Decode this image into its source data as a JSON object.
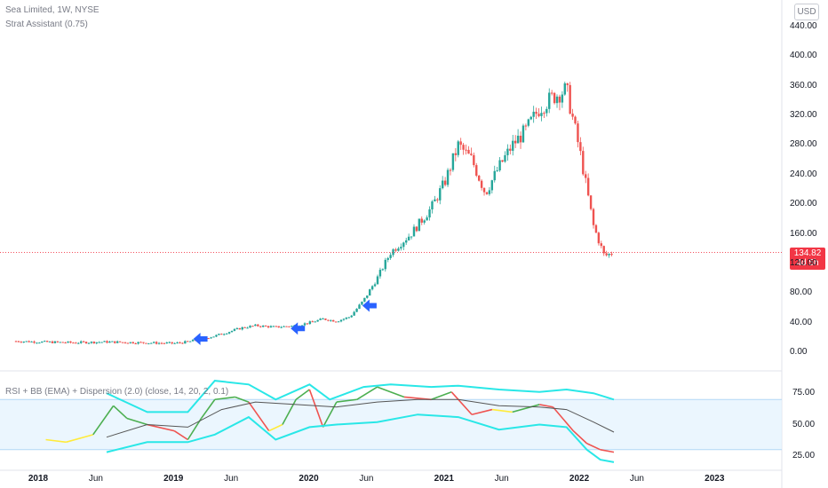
{
  "header": {
    "symbol_line": "Sea Limited, 1W, NYSE",
    "indicator_line": "Strat Assistant (0.75)",
    "currency_button": "USD"
  },
  "rsi_pane": {
    "legend": "RSI + BB (EMA) + Dispersion (2.0) (close, 14, 20, 2, 0.1)"
  },
  "last_price": {
    "value": "134.82",
    "countdown": "4d 5h"
  },
  "colors": {
    "bull": "#26a69a",
    "bear": "#ef5350",
    "price_line": "#f23645",
    "signal_arrow": "#2962ff",
    "bb_band": "#29e7e7",
    "basis": "#555555",
    "rsi_green": "#4caf50",
    "rsi_yellow": "#ffeb3b",
    "rsi_red": "#ef5350",
    "rsi_zone": "#e3f2fd"
  },
  "chart_data": [
    {
      "type": "candlestick",
      "title": "Sea Limited, 1W, NYSE",
      "y_ticks": [
        "440.00",
        "400.00",
        "360.00",
        "320.00",
        "280.00",
        "240.00",
        "200.00",
        "160.00",
        "120.00",
        "80.00",
        "40.00",
        "0.00"
      ],
      "ylim": [
        0,
        440
      ],
      "x_ticks": [
        "2018",
        "Jun",
        "2019",
        "Jun",
        "2020",
        "Jun",
        "2021",
        "Jun",
        "2022",
        "Jun",
        "2023"
      ],
      "close_path": [
        {
          "t": 2017.83,
          "v": 15
        },
        {
          "t": 2018.0,
          "v": 14
        },
        {
          "t": 2018.25,
          "v": 13
        },
        {
          "t": 2018.5,
          "v": 14
        },
        {
          "t": 2018.75,
          "v": 13
        },
        {
          "t": 2019.0,
          "v": 12
        },
        {
          "t": 2019.1,
          "v": 14
        },
        {
          "t": 2019.3,
          "v": 22
        },
        {
          "t": 2019.5,
          "v": 33
        },
        {
          "t": 2019.6,
          "v": 36
        },
        {
          "t": 2019.75,
          "v": 34
        },
        {
          "t": 2019.9,
          "v": 36
        },
        {
          "t": 2020.0,
          "v": 40
        },
        {
          "t": 2020.1,
          "v": 45
        },
        {
          "t": 2020.2,
          "v": 42
        },
        {
          "t": 2020.3,
          "v": 48
        },
        {
          "t": 2020.4,
          "v": 70
        },
        {
          "t": 2020.5,
          "v": 100
        },
        {
          "t": 2020.6,
          "v": 135
        },
        {
          "t": 2020.75,
          "v": 160
        },
        {
          "t": 2020.9,
          "v": 195
        },
        {
          "t": 2021.0,
          "v": 230
        },
        {
          "t": 2021.1,
          "v": 280
        },
        {
          "t": 2021.2,
          "v": 260
        },
        {
          "t": 2021.3,
          "v": 215
        },
        {
          "t": 2021.4,
          "v": 250
        },
        {
          "t": 2021.5,
          "v": 280
        },
        {
          "t": 2021.6,
          "v": 300
        },
        {
          "t": 2021.7,
          "v": 330
        },
        {
          "t": 2021.8,
          "v": 345
        },
        {
          "t": 2021.9,
          "v": 355
        },
        {
          "t": 2022.0,
          "v": 270
        },
        {
          "t": 2022.1,
          "v": 170
        },
        {
          "t": 2022.18,
          "v": 130
        },
        {
          "t": 2022.25,
          "v": 134.82
        }
      ],
      "last_price": 134.82,
      "signal_arrows": [
        {
          "t": 2019.2,
          "v": 18
        },
        {
          "t": 2019.92,
          "v": 32
        },
        {
          "t": 2020.45,
          "v": 63
        }
      ]
    },
    {
      "type": "line",
      "title": "RSI + BB (EMA) + Dispersion (2.0) (close, 14, 20, 2, 0.1)",
      "y_ticks": [
        "75.00",
        "50.00",
        "25.00"
      ],
      "ylim": [
        15,
        90
      ],
      "zone": [
        30,
        70
      ],
      "series": [
        {
          "role": "rsi",
          "points": [
            {
              "t": 2018.05,
              "v": 38,
              "c": "yellow"
            },
            {
              "t": 2018.2,
              "v": 36,
              "c": "yellow"
            },
            {
              "t": 2018.4,
              "v": 42,
              "c": "yellow"
            },
            {
              "t": 2018.55,
              "v": 65,
              "c": "green"
            },
            {
              "t": 2018.65,
              "v": 55,
              "c": "green"
            },
            {
              "t": 2018.8,
              "v": 50,
              "c": "green"
            },
            {
              "t": 2019.0,
              "v": 45,
              "c": "red"
            },
            {
              "t": 2019.1,
              "v": 38,
              "c": "red"
            },
            {
              "t": 2019.2,
              "v": 55,
              "c": "green"
            },
            {
              "t": 2019.3,
              "v": 70,
              "c": "green"
            },
            {
              "t": 2019.45,
              "v": 72,
              "c": "green"
            },
            {
              "t": 2019.55,
              "v": 68,
              "c": "green"
            },
            {
              "t": 2019.7,
              "v": 45,
              "c": "red"
            },
            {
              "t": 2019.8,
              "v": 50,
              "c": "yellow"
            },
            {
              "t": 2019.9,
              "v": 70,
              "c": "green"
            },
            {
              "t": 2020.0,
              "v": 78,
              "c": "green"
            },
            {
              "t": 2020.1,
              "v": 48,
              "c": "red"
            },
            {
              "t": 2020.2,
              "v": 68,
              "c": "green"
            },
            {
              "t": 2020.35,
              "v": 70,
              "c": "green"
            },
            {
              "t": 2020.5,
              "v": 80,
              "c": "green"
            },
            {
              "t": 2020.7,
              "v": 72,
              "c": "green"
            },
            {
              "t": 2020.9,
              "v": 70,
              "c": "red"
            },
            {
              "t": 2021.05,
              "v": 76,
              "c": "green"
            },
            {
              "t": 2021.2,
              "v": 58,
              "c": "red"
            },
            {
              "t": 2021.35,
              "v": 62,
              "c": "red"
            },
            {
              "t": 2021.5,
              "v": 60,
              "c": "yellow"
            },
            {
              "t": 2021.7,
              "v": 66,
              "c": "green"
            },
            {
              "t": 2021.8,
              "v": 64,
              "c": "red"
            },
            {
              "t": 2021.95,
              "v": 45,
              "c": "red"
            },
            {
              "t": 2022.05,
              "v": 35,
              "c": "red"
            },
            {
              "t": 2022.15,
              "v": 30,
              "c": "red"
            },
            {
              "t": 2022.25,
              "v": 28,
              "c": "red"
            }
          ]
        },
        {
          "role": "upper_band",
          "values": [
            {
              "t": 2018.5,
              "v": 75
            },
            {
              "t": 2018.8,
              "v": 60
            },
            {
              "t": 2019.1,
              "v": 60
            },
            {
              "t": 2019.3,
              "v": 85
            },
            {
              "t": 2019.55,
              "v": 82
            },
            {
              "t": 2019.75,
              "v": 70
            },
            {
              "t": 2020.0,
              "v": 82
            },
            {
              "t": 2020.15,
              "v": 70
            },
            {
              "t": 2020.4,
              "v": 80
            },
            {
              "t": 2020.6,
              "v": 82
            },
            {
              "t": 2020.9,
              "v": 80
            },
            {
              "t": 2021.1,
              "v": 81
            },
            {
              "t": 2021.4,
              "v": 78
            },
            {
              "t": 2021.7,
              "v": 76
            },
            {
              "t": 2021.9,
              "v": 78
            },
            {
              "t": 2022.1,
              "v": 75
            },
            {
              "t": 2022.25,
              "v": 70
            }
          ]
        },
        {
          "role": "basis",
          "values": [
            {
              "t": 2018.5,
              "v": 40
            },
            {
              "t": 2018.8,
              "v": 50
            },
            {
              "t": 2019.1,
              "v": 48
            },
            {
              "t": 2019.35,
              "v": 62
            },
            {
              "t": 2019.6,
              "v": 68
            },
            {
              "t": 2019.9,
              "v": 66
            },
            {
              "t": 2020.2,
              "v": 64
            },
            {
              "t": 2020.5,
              "v": 68
            },
            {
              "t": 2020.8,
              "v": 70
            },
            {
              "t": 2021.1,
              "v": 70
            },
            {
              "t": 2021.4,
              "v": 65
            },
            {
              "t": 2021.7,
              "v": 64
            },
            {
              "t": 2021.9,
              "v": 62
            },
            {
              "t": 2022.1,
              "v": 52
            },
            {
              "t": 2022.25,
              "v": 44
            }
          ]
        },
        {
          "role": "lower_band",
          "values": [
            {
              "t": 2018.5,
              "v": 28
            },
            {
              "t": 2018.8,
              "v": 36
            },
            {
              "t": 2019.1,
              "v": 36
            },
            {
              "t": 2019.3,
              "v": 42
            },
            {
              "t": 2019.55,
              "v": 56
            },
            {
              "t": 2019.75,
              "v": 38
            },
            {
              "t": 2020.0,
              "v": 48
            },
            {
              "t": 2020.2,
              "v": 50
            },
            {
              "t": 2020.5,
              "v": 52
            },
            {
              "t": 2020.8,
              "v": 58
            },
            {
              "t": 2021.1,
              "v": 56
            },
            {
              "t": 2021.4,
              "v": 46
            },
            {
              "t": 2021.7,
              "v": 50
            },
            {
              "t": 2021.9,
              "v": 48
            },
            {
              "t": 2022.05,
              "v": 30
            },
            {
              "t": 2022.15,
              "v": 22
            },
            {
              "t": 2022.25,
              "v": 20
            }
          ]
        }
      ]
    }
  ]
}
